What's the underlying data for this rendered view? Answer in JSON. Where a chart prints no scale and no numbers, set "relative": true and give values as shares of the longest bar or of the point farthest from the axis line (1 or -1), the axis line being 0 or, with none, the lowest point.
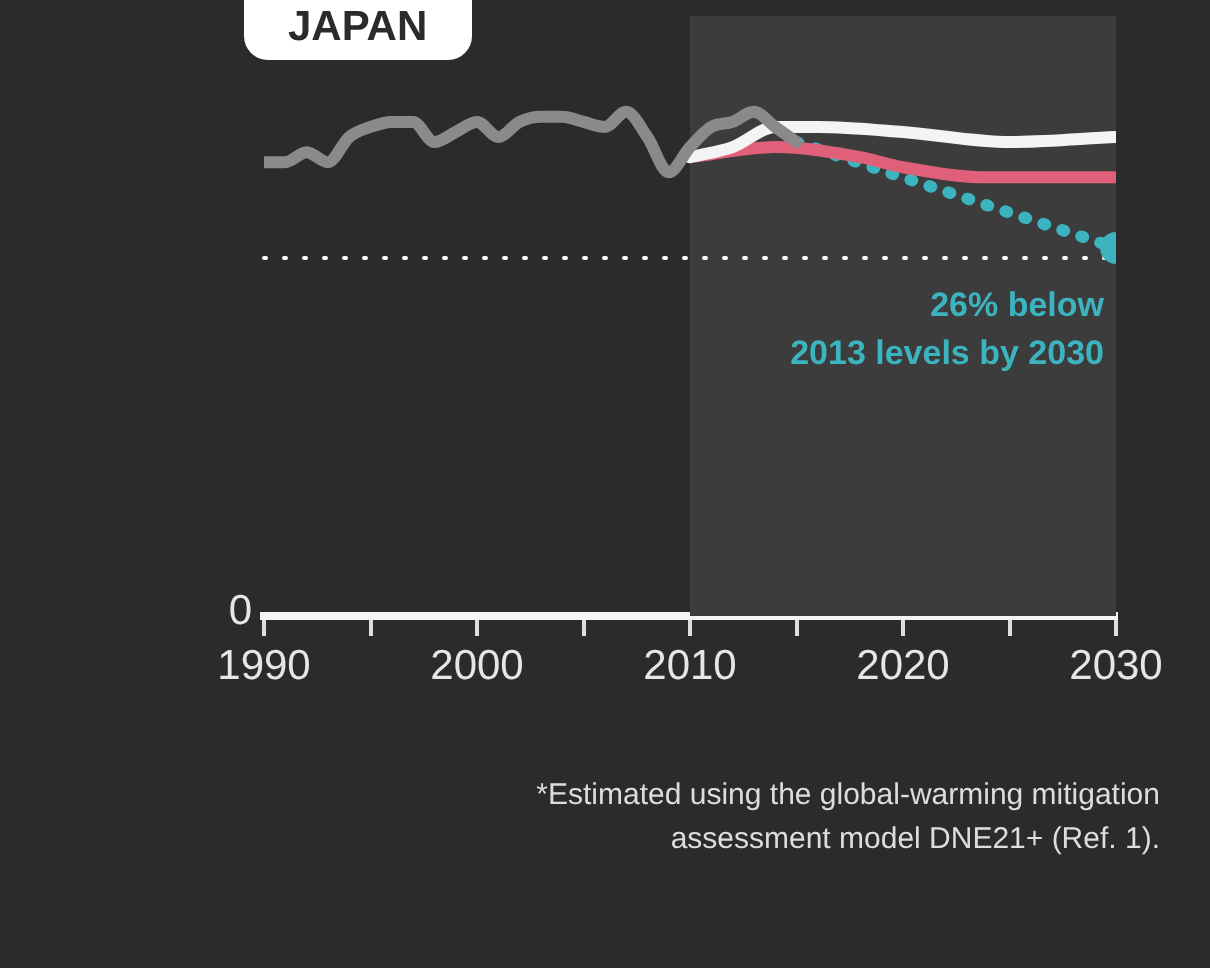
{
  "chart_data": {
    "type": "line",
    "title": "JAPAN",
    "relative": true,
    "xlim": [
      1990,
      2030
    ],
    "xticks": [
      1990,
      {
        "value": 1995,
        "label": null
      },
      2000,
      {
        "value": 2005,
        "label": null
      },
      2010,
      {
        "value": 2015,
        "label": null
      },
      2020,
      {
        "value": 2025,
        "label": null
      },
      2030
    ],
    "series": [
      {
        "color": "#8a8a8a",
        "x": [
          1990,
          1991,
          1992,
          1993,
          1994,
          1995,
          1996,
          1997,
          1998,
          1999,
          2000,
          2001,
          2002,
          2003,
          2004,
          2005,
          2006,
          2007,
          2008,
          2009,
          2010,
          2011,
          2012,
          2013,
          2014,
          2015
        ],
        "values": [
          0.9,
          0.9,
          0.92,
          0.9,
          0.95,
          0.97,
          0.98,
          0.98,
          0.94,
          0.96,
          0.98,
          0.95,
          0.98,
          0.99,
          0.99,
          0.98,
          0.97,
          1,
          0.95,
          0.88,
          0.93,
          0.97,
          0.98,
          1,
          0.97,
          0.94
        ]
      },
      {
        "color": "#f4f4f4",
        "x": [
          2010,
          2012,
          2014,
          2016,
          2020,
          2025,
          2030
        ],
        "values": [
          0.91,
          0.93,
          0.97,
          0.97,
          0.96,
          0.94,
          0.95
        ]
      },
      {
        "color": "#e0607a",
        "x": [
          2010,
          2014,
          2018,
          2020,
          2024,
          2030
        ],
        "values": [
          0.91,
          0.93,
          0.91,
          0.89,
          0.87,
          0.87
        ]
      },
      {
        "color": "#3cb4c0",
        "x": [
          2015,
          2030
        ],
        "values": [
          0.94,
          0.73
        ],
        "line_style": "dotted",
        "marker": "circle"
      }
    ],
    "ref_lines": [
      {
        "axis": "y",
        "value": 0.71,
        "color": "#ffffff",
        "line_style": "dotted"
      }
    ],
    "bands": [
      {
        "axis": "x",
        "from": 2010,
        "to": 2030,
        "color": "#3c3c3c"
      }
    ],
    "annotations": [
      "0",
      {
        "text": "26% below\n2013 levels by 2030",
        "x": 2030,
        "y": 0.73
      },
      "*Estimated using the global-warming mitigation\nassessment model DNE21+ (Ref. 1)."
    ],
    "grid": false,
    "legend": false
  }
}
